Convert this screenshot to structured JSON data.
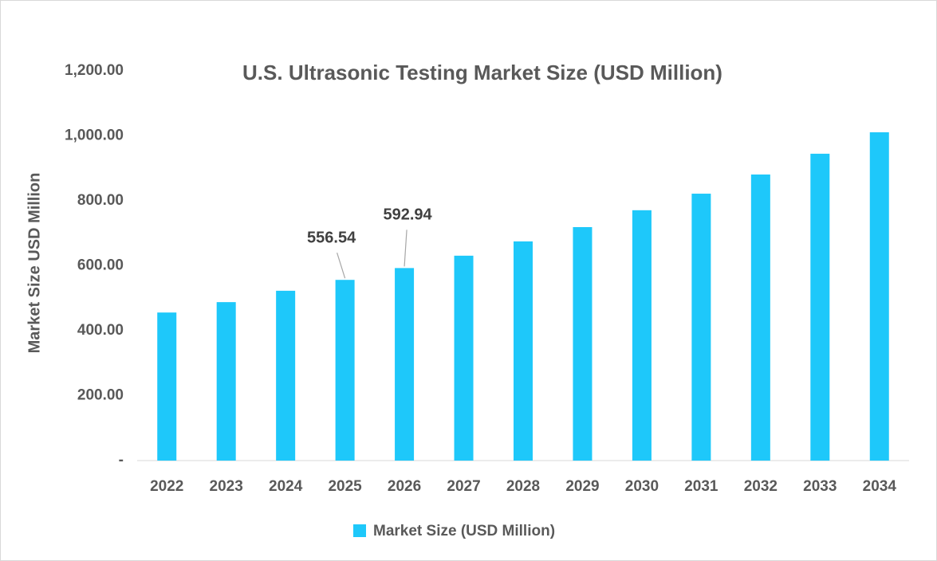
{
  "chart_data": {
    "type": "bar",
    "title": "U.S. Ultrasonic Testing Market Size (USD Million)",
    "y_label": "Market Size USD Million",
    "categories": [
      "2022",
      "2023",
      "2024",
      "2025",
      "2026",
      "2027",
      "2028",
      "2029",
      "2030",
      "2031",
      "2032",
      "2033",
      "2034"
    ],
    "series": [
      {
        "name": "Market Size (USD Million)",
        "color": "#1ec8fa",
        "values": [
          456,
          488,
          523,
          556.54,
          592.94,
          631,
          675,
          719,
          771,
          822,
          881,
          945,
          1011
        ],
        "value_labels": [
          null,
          null,
          null,
          "556.54",
          "592.94",
          null,
          null,
          null,
          null,
          null,
          null,
          null,
          null
        ]
      }
    ],
    "ylim": [
      0,
      1200
    ],
    "yticks": [
      {
        "value": 0,
        "label": "-"
      },
      {
        "value": 200,
        "label": "200.00"
      },
      {
        "value": 400,
        "label": "400.00"
      },
      {
        "value": 600,
        "label": "600.00"
      },
      {
        "value": 800,
        "label": "800.00"
      },
      {
        "value": 1000,
        "label": "1,000.00"
      },
      {
        "value": 1200,
        "label": "1,200.00"
      }
    ],
    "grid": false,
    "legend": "bottom"
  }
}
